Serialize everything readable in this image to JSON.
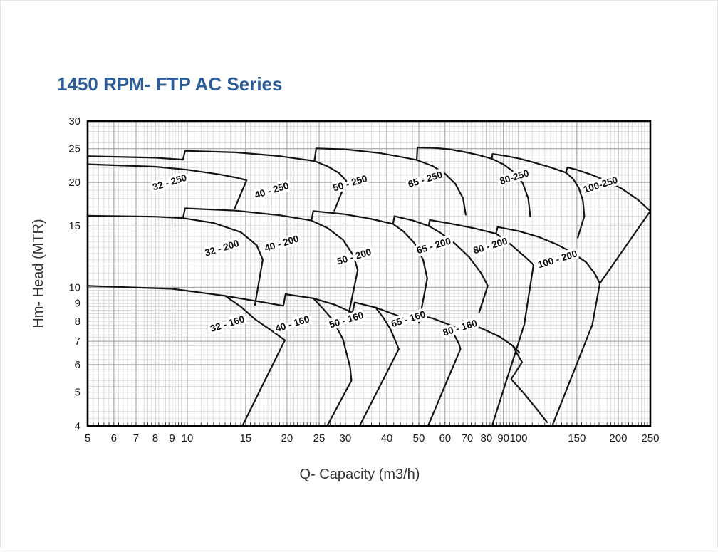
{
  "page": {
    "title": "1450 RPM- FTP AC Series"
  },
  "colors": {
    "title_blue": "#2d5d99",
    "curve": "#141414",
    "grid_minor": "#c9c9c9",
    "grid_major": "#9b9b9b",
    "frame": "#000000",
    "tick_text": "#1a1a1a",
    "axis_title": "#333333",
    "region_label": "#0d0d0d",
    "label_halo": "#ffffff"
  },
  "chart_data": {
    "type": "line",
    "title": "1450 RPM- FTP AC Series",
    "xlabel": "Q- Capacity (m3/h)",
    "ylabel": "Hm- Head (MTR)",
    "x_scale": "log",
    "y_scale": "log",
    "xlim": [
      5,
      250
    ],
    "ylim": [
      4,
      30
    ],
    "grid": true,
    "x_ticks": [
      5,
      6,
      7,
      8,
      9,
      10,
      15,
      20,
      25,
      30,
      40,
      50,
      60,
      70,
      80,
      90,
      100,
      150,
      200,
      250
    ],
    "y_ticks": [
      30,
      25,
      20,
      15,
      10,
      9,
      8,
      7,
      6,
      5,
      4
    ],
    "regions": [
      {
        "label": "32 - 250",
        "label_pos": [
          8.9,
          19.6
        ]
      },
      {
        "label": "40 - 250",
        "label_pos": [
          18.1,
          18.6
        ]
      },
      {
        "label": "50 - 250",
        "label_pos": [
          31.2,
          19.5
        ]
      },
      {
        "label": "65 - 250",
        "label_pos": [
          52.6,
          20.0
        ]
      },
      {
        "label": "80-250",
        "label_pos": [
          97.7,
          20.3
        ]
      },
      {
        "label": "100-250",
        "label_pos": [
          178,
          19.3
        ]
      },
      {
        "label": "32 - 200",
        "label_pos": [
          12.8,
          12.7
        ]
      },
      {
        "label": "40 - 200",
        "label_pos": [
          19.4,
          13.1
        ]
      },
      {
        "label": "50 - 200",
        "label_pos": [
          32.1,
          12.0
        ]
      },
      {
        "label": "65 - 200",
        "label_pos": [
          55.8,
          12.9
        ]
      },
      {
        "label": "80 - 200",
        "label_pos": [
          82.8,
          12.9
        ]
      },
      {
        "label": "100 - 200",
        "label_pos": [
          132,
          11.8
        ]
      },
      {
        "label": "32 - 160",
        "label_pos": [
          13.3,
          7.7
        ]
      },
      {
        "label": "40 - 160",
        "label_pos": [
          20.9,
          7.7
        ]
      },
      {
        "label": "50 - 160",
        "label_pos": [
          30.4,
          7.9
        ]
      },
      {
        "label": "65 - 160",
        "label_pos": [
          46.8,
          7.95
        ]
      },
      {
        "label": "80 - 160",
        "label_pos": [
          67,
          7.5
        ]
      }
    ],
    "label_rotation_deg": -17,
    "curves": [
      {
        "name": "top-250-stepped",
        "points": [
          [
            5,
            23.8
          ],
          [
            8,
            23.55
          ],
          [
            9.7,
            23.25
          ],
          [
            9.85,
            24.65
          ],
          [
            14,
            24.4
          ],
          [
            19,
            23.8
          ],
          [
            24.2,
            23.05
          ],
          [
            24.5,
            25.05
          ],
          [
            30,
            24.9
          ],
          [
            38,
            24.3
          ],
          [
            44,
            23.7
          ],
          [
            49.3,
            23.2
          ],
          [
            49.5,
            25.2
          ],
          [
            55,
            25.15
          ],
          [
            62,
            24.9
          ],
          [
            69,
            24.45
          ],
          [
            76,
            23.95
          ],
          [
            83,
            23.4
          ],
          [
            83.5,
            24.15
          ],
          [
            90,
            23.9
          ],
          [
            100,
            23.45
          ],
          [
            110,
            22.9
          ],
          [
            125,
            22.1
          ],
          [
            139,
            21.35
          ],
          [
            140.5,
            22.1
          ],
          [
            150,
            21.75
          ],
          [
            165,
            21.1
          ],
          [
            185,
            20.2
          ],
          [
            205,
            19.2
          ],
          [
            230,
            17.8
          ],
          [
            250,
            16.55
          ]
        ]
      },
      {
        "name": "env-32-250",
        "points": [
          [
            5,
            22.55
          ],
          [
            8,
            22.2
          ],
          [
            10,
            21.75
          ],
          [
            12.5,
            21.1
          ],
          [
            14.2,
            20.6
          ],
          [
            15.1,
            20.3
          ],
          [
            13.9,
            16.85
          ]
        ]
      },
      {
        "name": "env-40-250",
        "points": [
          [
            24.2,
            23.05
          ],
          [
            26.5,
            22.25
          ],
          [
            28.7,
            21.3
          ],
          [
            30.2,
            20.2
          ],
          [
            27.8,
            16.6
          ]
        ]
      },
      {
        "name": "env-50-250",
        "points": [
          [
            49.3,
            23.2
          ],
          [
            55,
            22.3
          ],
          [
            60,
            21.2
          ],
          [
            64.5,
            19.8
          ],
          [
            68,
            18.0
          ],
          [
            69.3,
            16.15
          ]
        ]
      },
      {
        "name": "env-65-250",
        "points": [
          [
            83,
            23.4
          ],
          [
            90,
            22.55
          ],
          [
            97,
            21.4
          ],
          [
            103,
            19.9
          ],
          [
            107,
            18.0
          ],
          [
            108.5,
            16.0
          ]
        ]
      },
      {
        "name": "env-80-250",
        "points": [
          [
            139,
            21.35
          ],
          [
            146,
            20.5
          ],
          [
            152,
            19.3
          ],
          [
            156.5,
            17.7
          ],
          [
            158,
            16.0
          ],
          [
            151,
            13.9
          ]
        ]
      },
      {
        "name": "env-100-250-right",
        "points": [
          [
            250,
            16.55
          ],
          [
            176,
            10.26
          ]
        ]
      },
      {
        "name": "top-200-stepped",
        "points": [
          [
            5,
            16.05
          ],
          [
            8,
            15.95
          ],
          [
            9.7,
            15.8
          ],
          [
            9.85,
            16.85
          ],
          [
            14,
            16.6
          ],
          [
            19,
            16.1
          ],
          [
            23.7,
            15.55
          ],
          [
            24,
            16.55
          ],
          [
            30,
            16.2
          ],
          [
            36,
            15.7
          ],
          [
            41.8,
            15.2
          ],
          [
            42.2,
            16.0
          ],
          [
            48,
            15.55
          ],
          [
            53.5,
            15.0
          ],
          [
            54,
            15.6
          ],
          [
            62,
            15.25
          ],
          [
            74,
            14.75
          ],
          [
            85.5,
            14.25
          ],
          [
            86.5,
            14.9
          ],
          [
            100,
            14.5
          ],
          [
            115,
            13.95
          ],
          [
            130,
            13.3
          ],
          [
            145,
            12.6
          ],
          [
            160,
            11.8
          ],
          [
            170,
            10.95
          ],
          [
            176,
            10.26
          ]
        ]
      },
      {
        "name": "env-32-200",
        "points": [
          [
            9.7,
            15.8
          ],
          [
            12,
            15.3
          ],
          [
            14.5,
            14.4
          ],
          [
            16.2,
            13.2
          ],
          [
            16.9,
            12.0
          ],
          [
            16.0,
            8.9
          ]
        ]
      },
      {
        "name": "env-40-200",
        "points": [
          [
            23.7,
            15.55
          ],
          [
            26.5,
            14.8
          ],
          [
            29.5,
            13.7
          ],
          [
            31.8,
            12.3
          ],
          [
            32.7,
            11.2
          ],
          [
            30.8,
            8.5
          ]
        ]
      },
      {
        "name": "env-50-200",
        "points": [
          [
            41.8,
            15.2
          ],
          [
            45,
            14.45
          ],
          [
            48.5,
            13.4
          ],
          [
            51.5,
            12.0
          ],
          [
            53,
            10.6
          ],
          [
            50,
            7.9
          ]
        ]
      },
      {
        "name": "env-65-200",
        "points": [
          [
            53.5,
            15.0
          ],
          [
            58,
            14.35
          ],
          [
            64,
            13.4
          ],
          [
            71,
            12.2
          ],
          [
            77,
            11.0
          ],
          [
            80.7,
            10.1
          ],
          [
            76,
            8.45
          ]
        ]
      },
      {
        "name": "env-80-200",
        "points": [
          [
            85.5,
            14.25
          ],
          [
            92,
            13.6
          ],
          [
            99,
            12.8
          ],
          [
            106,
            12.1
          ],
          [
            111,
            11.6
          ],
          [
            104,
            7.8
          ],
          [
            83.5,
            4.05
          ]
        ]
      },
      {
        "name": "env-100-200-right",
        "points": [
          [
            176,
            10.26
          ],
          [
            167,
            7.8
          ],
          [
            127,
            4.05
          ]
        ]
      },
      {
        "name": "top-160-stepped",
        "points": [
          [
            5,
            10.1
          ],
          [
            9,
            9.9
          ],
          [
            13,
            9.45
          ],
          [
            16.5,
            9.1
          ],
          [
            19.5,
            8.85
          ],
          [
            19.8,
            9.55
          ],
          [
            24,
            9.3
          ],
          [
            28,
            8.9
          ],
          [
            31.5,
            8.45
          ],
          [
            32,
            9.05
          ],
          [
            37,
            8.75
          ],
          [
            43,
            8.3
          ],
          [
            47.5,
            7.9
          ],
          [
            48,
            8.4
          ],
          [
            55,
            8.15
          ],
          [
            62,
            7.8
          ],
          [
            67,
            7.55
          ],
          [
            68,
            8.0
          ],
          [
            78,
            7.6
          ],
          [
            88,
            7.2
          ],
          [
            96,
            6.8
          ],
          [
            100.5,
            6.5
          ]
        ]
      },
      {
        "name": "env-32-160",
        "points": [
          [
            13,
            9.45
          ],
          [
            14.5,
            8.8
          ],
          [
            16,
            8.1
          ],
          [
            18,
            7.5
          ],
          [
            19.7,
            7.05
          ],
          [
            14.7,
            4.02
          ]
        ]
      },
      {
        "name": "env-40-160",
        "points": [
          [
            24,
            9.3
          ],
          [
            25.5,
            8.75
          ],
          [
            27.5,
            8.05
          ],
          [
            29.5,
            7.1
          ],
          [
            31,
            5.9
          ],
          [
            31.3,
            5.4
          ],
          [
            26.5,
            4.02
          ]
        ]
      },
      {
        "name": "env-50-160",
        "points": [
          [
            37,
            8.75
          ],
          [
            39,
            8.2
          ],
          [
            41,
            7.6
          ],
          [
            42.8,
            6.9
          ],
          [
            43.5,
            6.65
          ],
          [
            33.2,
            4.02
          ]
        ]
      },
      {
        "name": "env-65-160",
        "points": [
          [
            62,
            7.8
          ],
          [
            64,
            7.3
          ],
          [
            66,
            6.9
          ],
          [
            66.8,
            6.65
          ],
          [
            53.4,
            4.02
          ]
        ]
      },
      {
        "name": "env-80-160",
        "points": [
          [
            96,
            6.8
          ],
          [
            99,
            6.45
          ],
          [
            102.5,
            6.1
          ],
          [
            95,
            5.45
          ],
          [
            104,
            4.95
          ],
          [
            114,
            4.45
          ],
          [
            122,
            4.1
          ]
        ]
      }
    ]
  }
}
